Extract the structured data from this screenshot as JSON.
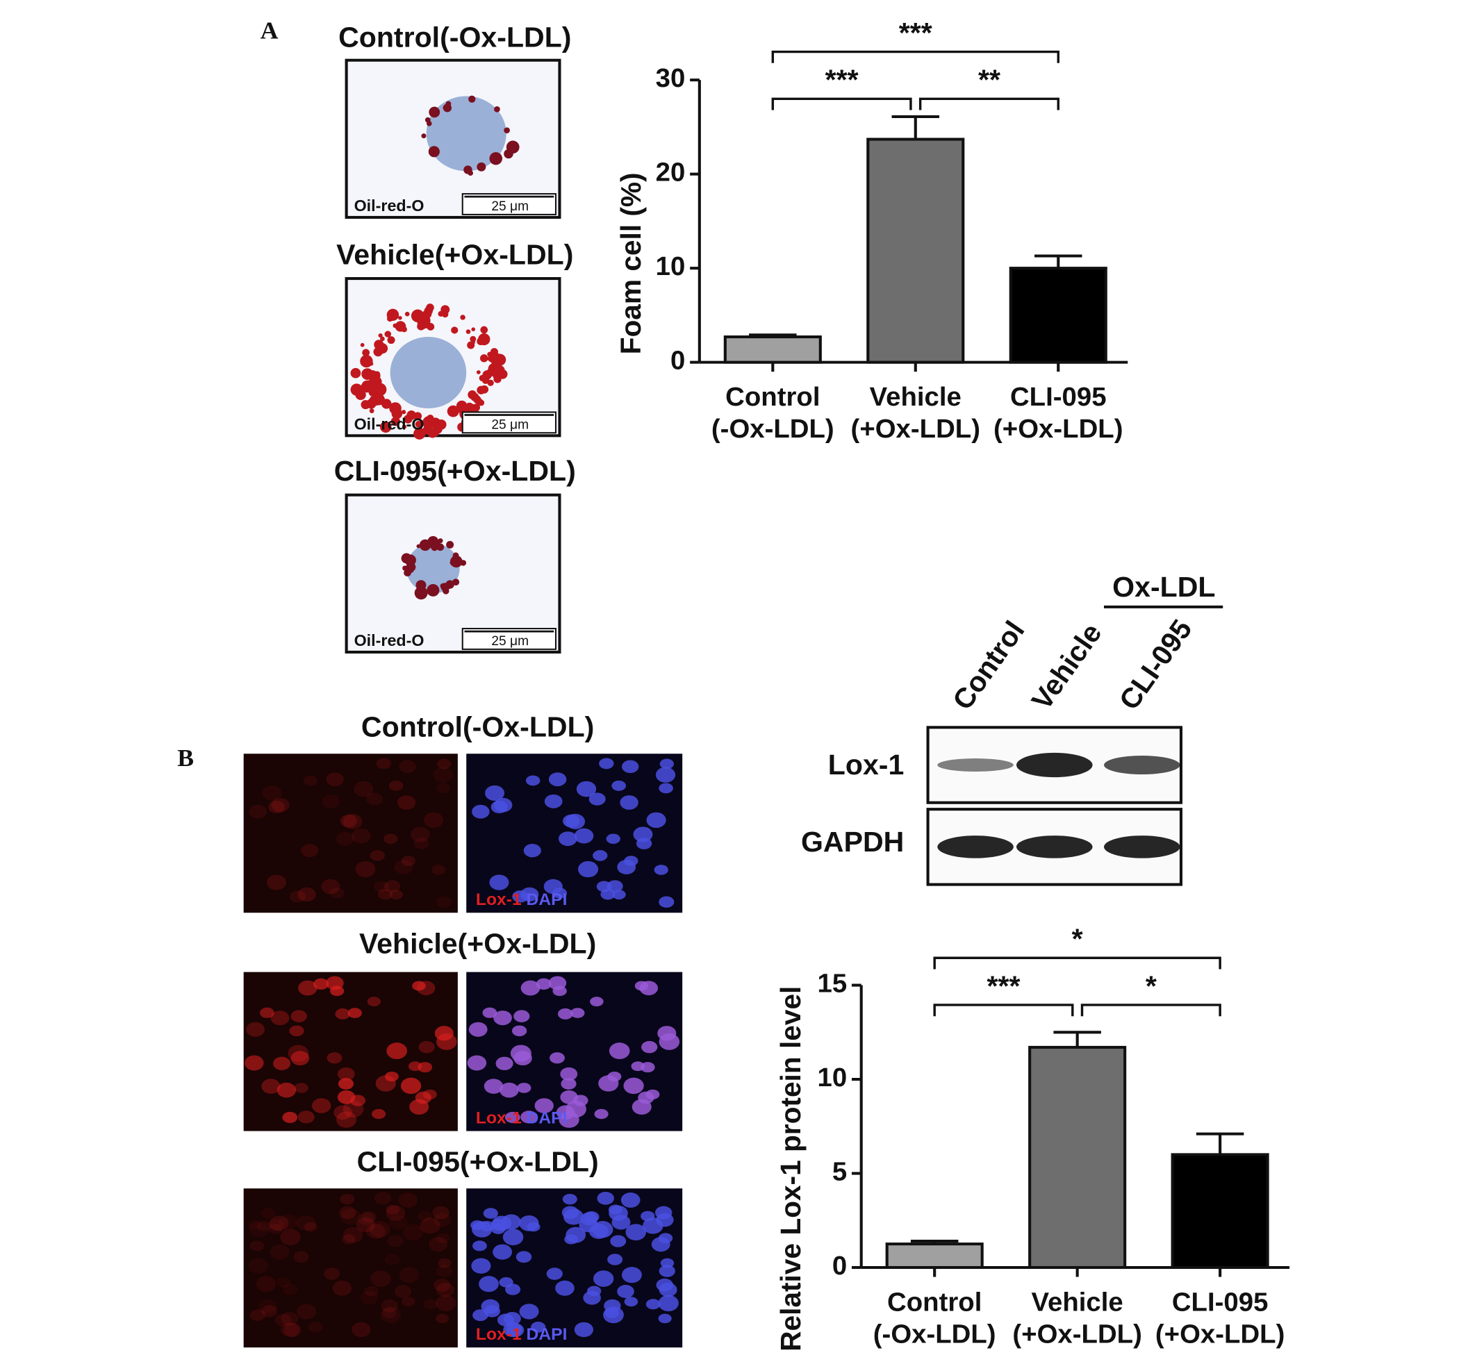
{
  "panel_labels": [
    "A",
    "B"
  ],
  "staining": {
    "titles": [
      "Control(-Ox-LDL)",
      "Vehicle(+Ox-LDL)",
      "CLI-095(+Ox-LDL)"
    ],
    "stain_labels": [
      "Oil-red-O",
      "Oil-red-O",
      "Oil-red-O"
    ],
    "scale_labels": [
      "25 μm",
      "25 μm",
      "25 μm"
    ]
  },
  "fluorescence": {
    "titles": [
      "Control(-Ox-LDL)",
      "Vehicle(+Ox-LDL)",
      "CLI-095(+Ox-LDL)"
    ],
    "channel_labels": [
      [
        "Lox-1",
        "DAPI"
      ],
      [
        "Lox-1",
        "DAPI"
      ],
      [
        "Lox-1",
        "DAPI"
      ]
    ]
  },
  "blot": {
    "group_label": "Ox-LDL",
    "lanes": [
      "Control",
      "Vehicle",
      "CLI-095"
    ],
    "rows": [
      "Lox-1",
      "GAPDH"
    ]
  },
  "chart_data": [
    {
      "type": "bar",
      "y_label": "Foam cell (%)",
      "categories": [
        "Control\n(-Ox-LDL)",
        "Vehicle\n(+Ox-LDL)",
        "CLI-095\n(+Ox-LDL)"
      ],
      "values": [
        2.7,
        23.7,
        10.0
      ],
      "errors": [
        0.2,
        2.4,
        1.3
      ],
      "colors": [
        "#a0a0a0",
        "#6e6e6e",
        "#000000"
      ],
      "ylim": [
        0,
        30
      ],
      "yticks": [
        0,
        10,
        20,
        30
      ],
      "significance": [
        "***",
        "**",
        "***"
      ]
    },
    {
      "type": "bar",
      "y_label": "Relative Lox-1 protein level",
      "categories": [
        "Control\n(-Ox-LDL)",
        "Vehicle\n(+Ox-LDL)",
        "CLI-095\n(+Ox-LDL)"
      ],
      "values": [
        1.25,
        11.7,
        6.0
      ],
      "errors": [
        0.15,
        0.8,
        1.1
      ],
      "colors": [
        "#a0a0a0",
        "#6e6e6e",
        "#000000"
      ],
      "ylim": [
        0,
        15
      ],
      "yticks": [
        0,
        5,
        10,
        15
      ],
      "significance": [
        "***",
        "*",
        "*"
      ]
    }
  ]
}
